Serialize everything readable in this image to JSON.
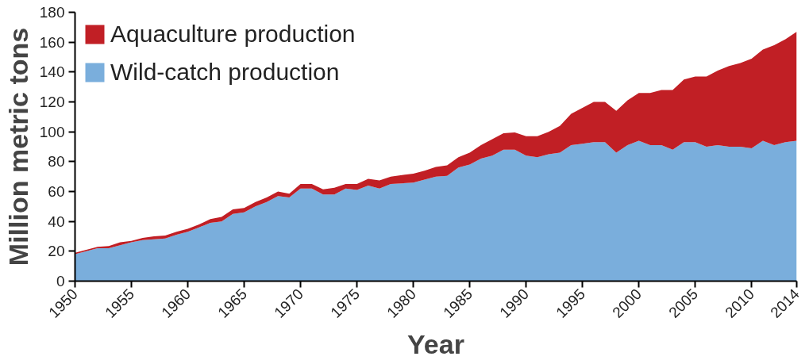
{
  "chart_data": {
    "type": "area",
    "stacked": true,
    "xlabel": "Year",
    "ylabel": "Million metric tons",
    "x": [
      1950,
      1951,
      1952,
      1953,
      1954,
      1955,
      1956,
      1957,
      1958,
      1959,
      1960,
      1961,
      1962,
      1963,
      1964,
      1965,
      1966,
      1967,
      1968,
      1969,
      1970,
      1971,
      1972,
      1973,
      1974,
      1975,
      1976,
      1977,
      1978,
      1979,
      1980,
      1981,
      1982,
      1983,
      1984,
      1985,
      1986,
      1987,
      1988,
      1989,
      1990,
      1991,
      1992,
      1993,
      1994,
      1995,
      1996,
      1997,
      1998,
      1999,
      2000,
      2001,
      2002,
      2003,
      2004,
      2005,
      2006,
      2007,
      2008,
      2009,
      2010,
      2011,
      2012,
      2013,
      2014
    ],
    "series": [
      {
        "name": "Wild-catch production",
        "color": "#7aaedc",
        "values": [
          18,
          20,
          22,
          22,
          24,
          26,
          27.5,
          28,
          28.5,
          31,
          33,
          36,
          39,
          40,
          45,
          46,
          50,
          53,
          57,
          56,
          62,
          62,
          58,
          58,
          62,
          61,
          64,
          62,
          65,
          65.5,
          66,
          68,
          70,
          70.5,
          76,
          78,
          82,
          84,
          88,
          88,
          84,
          83,
          85,
          86,
          91,
          92,
          93,
          93,
          86,
          91,
          94,
          91,
          91,
          88,
          93,
          93,
          90,
          91,
          90,
          90,
          89,
          94,
          91,
          93,
          94
        ]
      },
      {
        "name": "Aquaculture production",
        "color": "#c11f25",
        "values": [
          1,
          1,
          1,
          1.5,
          2,
          1,
          1.5,
          2,
          2,
          2,
          2,
          2,
          2.5,
          3,
          3,
          3,
          3,
          3,
          3,
          2.5,
          3,
          3,
          3.5,
          4.5,
          3,
          4,
          4.5,
          5.5,
          5,
          5.5,
          6,
          6,
          6.5,
          7,
          7,
          8,
          9,
          11,
          11,
          11.5,
          13,
          14,
          15,
          18,
          21,
          24,
          27,
          27,
          28,
          30,
          32,
          35,
          37,
          40,
          42,
          44,
          47,
          50,
          54,
          56,
          60,
          61,
          67,
          69,
          73
        ]
      }
    ],
    "xlim": [
      1950,
      2014
    ],
    "xticks": [
      1950,
      1955,
      1960,
      1965,
      1970,
      1975,
      1980,
      1985,
      1990,
      1995,
      2000,
      2005,
      2010,
      2014
    ],
    "ylim": [
      0,
      180
    ],
    "yticks": [
      0,
      20,
      40,
      60,
      80,
      100,
      120,
      140,
      160,
      180
    ],
    "grid": false,
    "legend": "top left"
  }
}
